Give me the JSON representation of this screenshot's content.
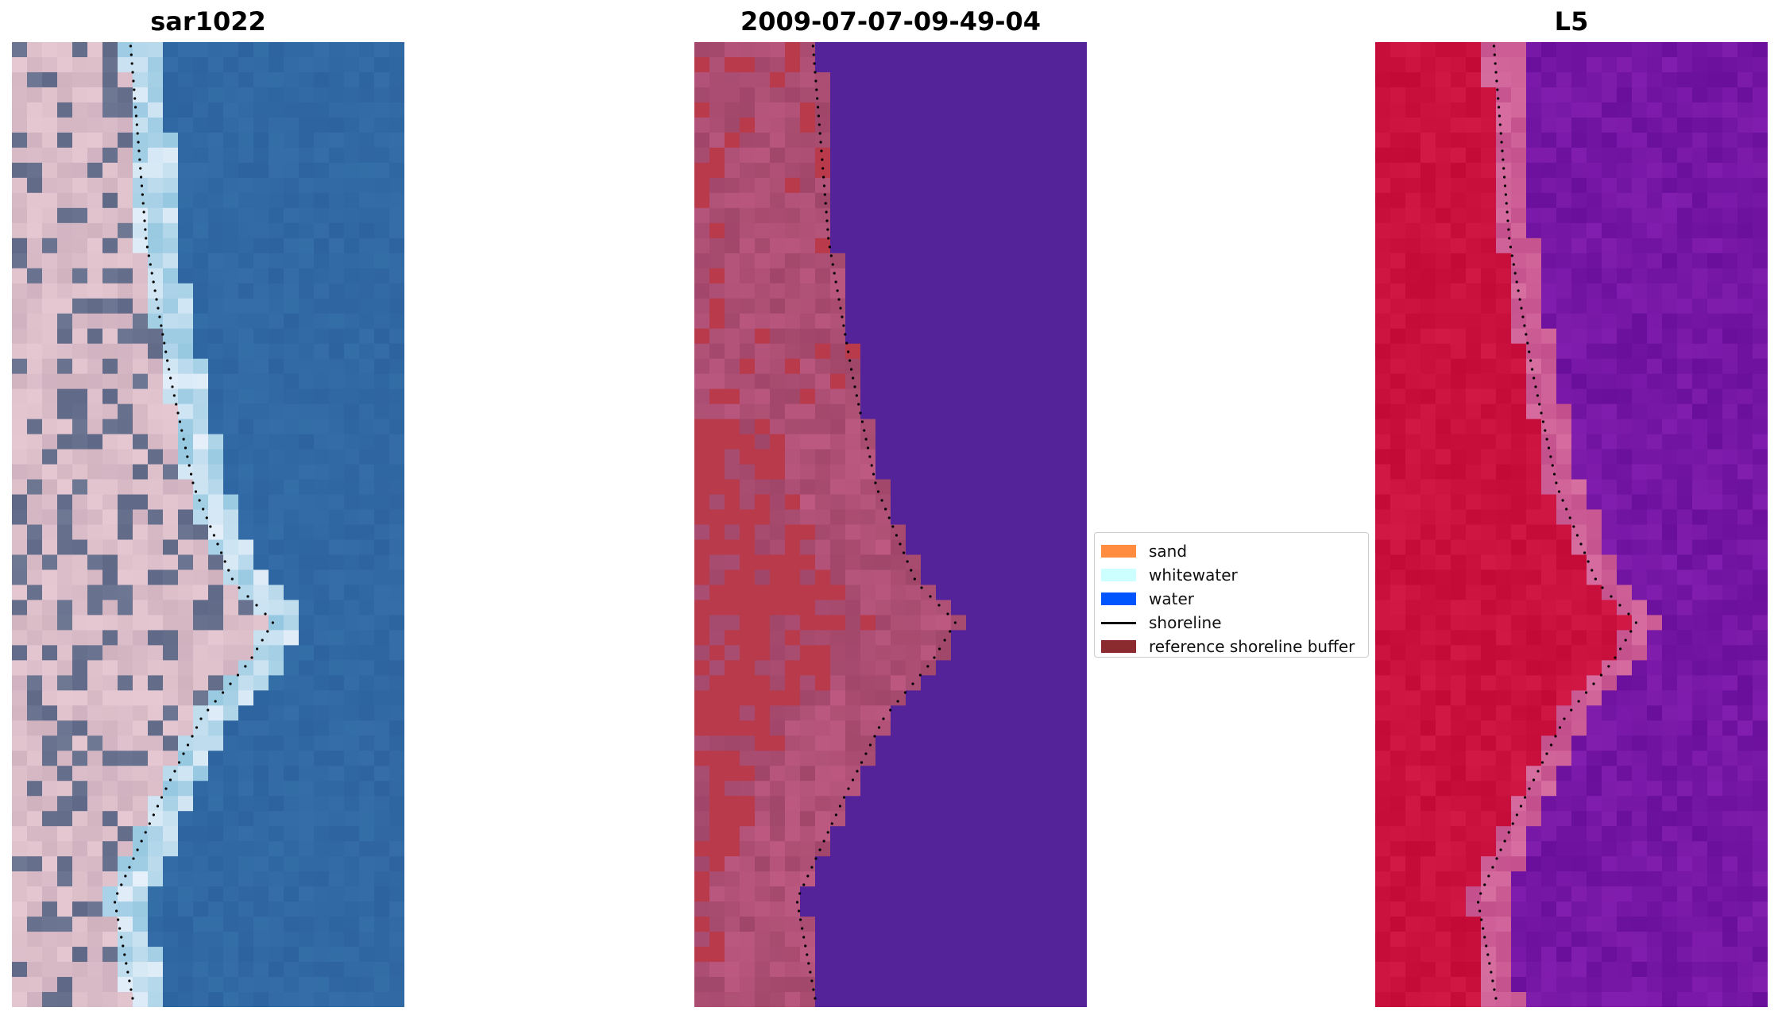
{
  "panels": [
    {
      "title": "sar1022",
      "kind": "rgb"
    },
    {
      "title": "2009-07-07-09-49-04",
      "kind": "classified"
    },
    {
      "title": "L5",
      "kind": "index"
    }
  ],
  "legend": {
    "items": [
      {
        "label": "sand",
        "color": "#ff8c3f",
        "type": "patch"
      },
      {
        "label": "whitewater",
        "color": "#ccffff",
        "type": "patch"
      },
      {
        "label": "water",
        "color": "#0055ff",
        "type": "patch"
      },
      {
        "label": "shoreline",
        "color": "#000000",
        "type": "line"
      },
      {
        "label": "reference shoreline buffer",
        "color": "#8b2a2f",
        "type": "patch"
      }
    ]
  },
  "colors": {
    "classified_water": "#54239a",
    "classified_land": "#b1506f",
    "classified_buffer": "#b93a4a",
    "index_land": "#c40a3a",
    "index_water": "#7312a0"
  }
}
